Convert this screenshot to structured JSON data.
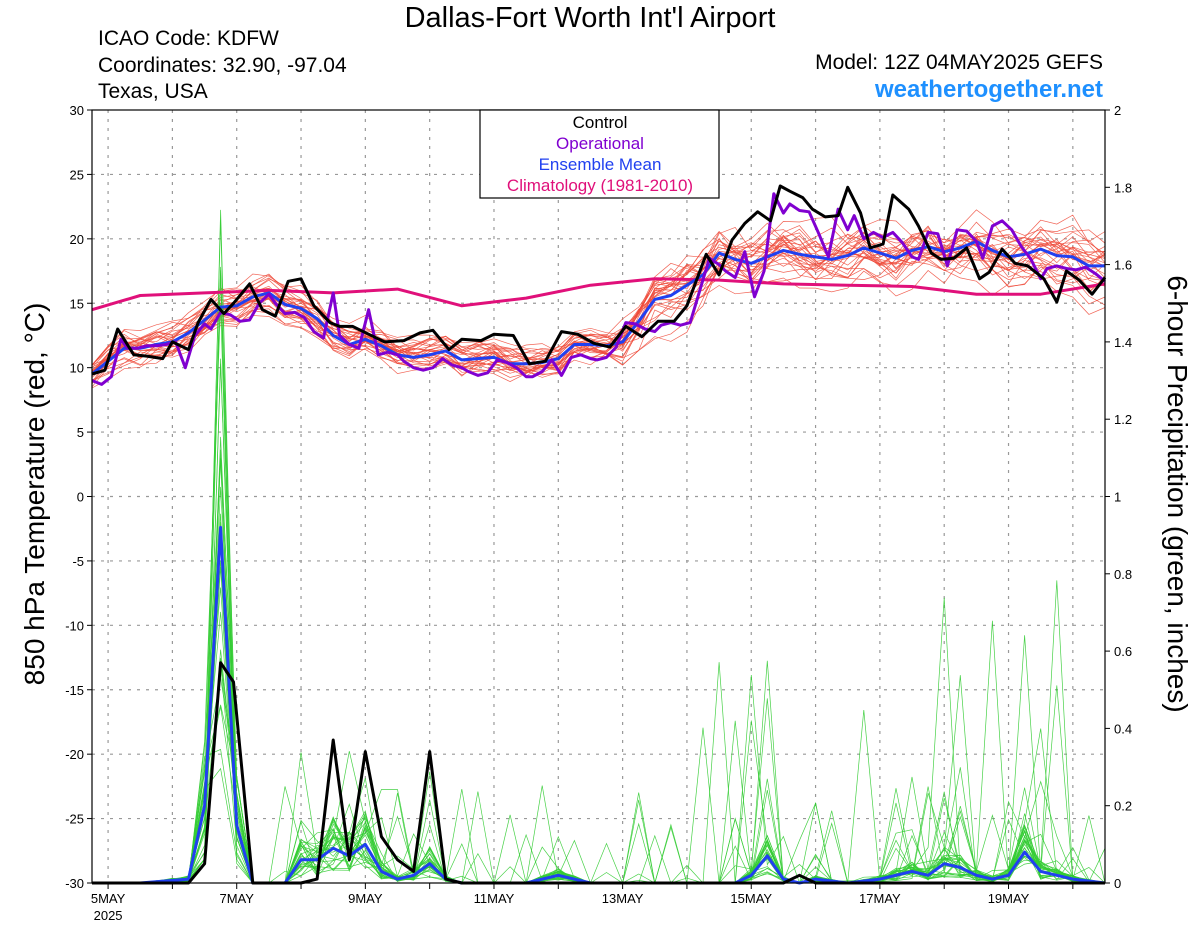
{
  "header": {
    "title": "Dallas-Fort Worth Int'l Airport",
    "icao": "ICAO Code: KDFW",
    "coordinates": "Coordinates: 32.90, -97.04",
    "region": "Texas, USA",
    "model": "Model: 12Z 04MAY2025 GEFS",
    "website": "weathertogether.net"
  },
  "colors": {
    "control": "#000000",
    "operational": "#8000d0",
    "ensemble_mean": "#2040f0",
    "climatology": "#e0107a",
    "members_temp": "#ee4a3a",
    "members_precip": "#33cc33",
    "grid": "#999999",
    "website": "#1e90ff"
  },
  "chart_data": {
    "type": "line",
    "title": "Dallas-Fort Worth Int'l Airport",
    "ylabel": "850 hPa Temperature (red, °C)",
    "y2label": "6-hour Precipitation (green, inches)",
    "ylim": [
      -30,
      30
    ],
    "y2lim": [
      0,
      2
    ],
    "xlim": [
      4.75,
      20.5
    ],
    "x_units": "day of May 2025 (UTC)",
    "y_ticks": [
      "30",
      "25",
      "20",
      "15",
      "10",
      "5",
      "0",
      "-5",
      "-10",
      "-15",
      "-20",
      "-25",
      "-30"
    ],
    "y2_ticks": [
      "2",
      "1.8",
      "1.6",
      "1.4",
      "1.2",
      "1",
      "0.8",
      "0.6",
      "0.4",
      "0.2",
      "0"
    ],
    "x_ticks": [
      {
        "label": "5MAY",
        "sub": "2025",
        "day": 5
      },
      {
        "label": "7MAY",
        "day": 7
      },
      {
        "label": "9MAY",
        "day": 9
      },
      {
        "label": "11MAY",
        "day": 11
      },
      {
        "label": "13MAY",
        "day": 13
      },
      {
        "label": "15MAY",
        "day": 15
      },
      {
        "label": "17MAY",
        "day": 17
      },
      {
        "label": "19MAY",
        "day": 19
      }
    ],
    "grid": true,
    "legend_placement": "top-center",
    "legend": [
      {
        "label": "Control",
        "key": "control"
      },
      {
        "label": "Operational",
        "key": "operational"
      },
      {
        "label": "Ensemble Mean",
        "key": "ensemble_mean"
      },
      {
        "label": "Climatology (1981-2010)",
        "key": "climatology"
      }
    ],
    "series": [
      {
        "key": "climatology",
        "axis": "temp",
        "width": 3,
        "x": [
          4.75,
          5.5,
          6.5,
          7.5,
          8.5,
          9.5,
          10.5,
          11.5,
          12.5,
          13.5,
          14.5,
          15.5,
          16.5,
          17.5,
          18.5,
          19.5,
          20.5
        ],
        "y": [
          14.5,
          15.6,
          15.8,
          16.0,
          15.8,
          16.1,
          14.8,
          15.4,
          16.4,
          16.9,
          16.8,
          16.5,
          16.4,
          16.3,
          15.7,
          15.7,
          16.5
        ]
      },
      {
        "key": "ensemble_mean",
        "axis": "temp",
        "width": 3,
        "x": [
          4.75,
          5.0,
          5.25,
          5.5,
          5.75,
          6.0,
          6.25,
          6.5,
          6.75,
          7.0,
          7.25,
          7.5,
          7.75,
          8.0,
          8.25,
          8.5,
          8.75,
          9.0,
          9.25,
          9.5,
          9.75,
          10.0,
          10.25,
          10.5,
          10.75,
          11.0,
          11.25,
          11.5,
          11.75,
          12.0,
          12.25,
          12.5,
          12.75,
          13.0,
          13.25,
          13.5,
          13.75,
          14.0,
          14.25,
          14.5,
          14.75,
          15.0,
          15.25,
          15.5,
          15.75,
          16.0,
          16.25,
          16.5,
          16.75,
          17.0,
          17.25,
          17.5,
          17.75,
          18.0,
          18.25,
          18.5,
          18.75,
          19.0,
          19.25,
          19.5,
          19.75,
          20.0,
          20.25,
          20.5
        ],
        "y": [
          9.5,
          10.5,
          11.5,
          11.5,
          11.8,
          12.0,
          12.7,
          13.7,
          14.7,
          14.8,
          15.5,
          15.8,
          14.9,
          14.6,
          13.8,
          12.5,
          11.8,
          12.2,
          11.7,
          11.0,
          10.8,
          11.0,
          11.3,
          10.6,
          10.7,
          10.8,
          10.3,
          10.3,
          10.4,
          10.7,
          11.8,
          11.8,
          11.7,
          12.0,
          13.6,
          15.3,
          15.6,
          16.4,
          17.2,
          18.9,
          18.4,
          18.1,
          18.6,
          19.1,
          18.8,
          18.6,
          18.4,
          18.7,
          19.3,
          18.9,
          18.5,
          19.1,
          19.4,
          19.0,
          19.3,
          19.8,
          19.1,
          18.6,
          18.8,
          19.2,
          18.7,
          18.6,
          17.9,
          17.9
        ]
      },
      {
        "key": "operational",
        "axis": "temp",
        "width": 3,
        "x": [
          4.75,
          4.9,
          5.05,
          5.2,
          5.3,
          5.45,
          5.6,
          5.75,
          5.9,
          6.05,
          6.2,
          6.35,
          6.5,
          6.6,
          6.75,
          6.9,
          7.05,
          7.2,
          7.35,
          7.5,
          7.6,
          7.75,
          7.9,
          8.05,
          8.2,
          8.35,
          8.5,
          8.6,
          8.75,
          8.9,
          9.05,
          9.2,
          9.35,
          9.5,
          9.6,
          9.75,
          9.9,
          10.05,
          10.2,
          10.35,
          10.5,
          10.6,
          10.75,
          10.9,
          11.05,
          11.2,
          11.35,
          11.5,
          11.6,
          11.75,
          11.9,
          12.05,
          12.2,
          12.35,
          12.5,
          12.6,
          12.75,
          12.9,
          13.05,
          13.2,
          13.35,
          13.5,
          13.6,
          13.75,
          13.9,
          14.05,
          14.2,
          14.35,
          14.5,
          14.6,
          14.75,
          14.9,
          15.05,
          15.2,
          15.35,
          15.5,
          15.6,
          15.75,
          15.9,
          16.05,
          16.2,
          16.35,
          16.5,
          16.6,
          16.75,
          16.9,
          17.05,
          17.2,
          17.35,
          17.5,
          17.6,
          17.75,
          17.9,
          18.05,
          18.2,
          18.35,
          18.5,
          18.6,
          18.75,
          18.9,
          19.05,
          19.2,
          19.35,
          19.5,
          19.6,
          19.75,
          19.9,
          20.05,
          20.2,
          20.35,
          20.5
        ],
        "y": [
          9.0,
          8.7,
          9.3,
          12.2,
          11.5,
          11.5,
          11.7,
          11.7,
          11.8,
          12.0,
          10.0,
          12.5,
          13.4,
          13.0,
          14.3,
          14.1,
          13.6,
          13.7,
          15.0,
          15.7,
          15.0,
          14.2,
          14.3,
          13.9,
          12.8,
          12.3,
          15.8,
          12.5,
          11.8,
          11.5,
          14.5,
          11.0,
          11.2,
          11.0,
          10.5,
          10.0,
          9.8,
          10.0,
          10.7,
          10.2,
          10.0,
          9.7,
          9.4,
          9.6,
          10.6,
          10.4,
          10.0,
          9.3,
          9.3,
          9.7,
          10.6,
          9.4,
          10.8,
          11.0,
          10.7,
          10.6,
          10.8,
          11.6,
          13.5,
          13.4,
          13.0,
          12.8,
          13.3,
          13.5,
          13.3,
          13.5,
          16.0,
          18.5,
          18.0,
          17.5,
          17.0,
          19.0,
          15.5,
          17.5,
          23.5,
          22.0,
          22.7,
          22.2,
          22.1,
          20.4,
          18.6,
          22.3,
          20.7,
          21.8,
          20.0,
          20.5,
          20.1,
          20.5,
          19.7,
          18.6,
          18.4,
          20.5,
          20.4,
          17.9,
          20.7,
          20.6,
          19.8,
          18.5,
          21.0,
          21.4,
          20.7,
          19.4,
          18.4,
          16.9,
          17.7,
          17.9,
          17.7,
          17.6,
          17.8,
          17.3,
          16.7
        ]
      },
      {
        "key": "control",
        "axis": "temp",
        "width": 3,
        "x": [
          4.75,
          4.95,
          5.15,
          5.4,
          5.6,
          5.85,
          6.0,
          6.25,
          6.4,
          6.6,
          6.8,
          6.95,
          7.2,
          7.4,
          7.6,
          7.8,
          8.0,
          8.2,
          8.45,
          8.6,
          8.8,
          9.05,
          9.3,
          9.6,
          9.85,
          10.05,
          10.3,
          10.5,
          10.8,
          11.0,
          11.3,
          11.55,
          11.8,
          12.05,
          12.3,
          12.55,
          12.8,
          13.05,
          13.3,
          13.55,
          13.8,
          14.0,
          14.3,
          14.5,
          14.7,
          14.9,
          15.1,
          15.3,
          15.45,
          15.6,
          15.8,
          15.95,
          16.15,
          16.35,
          16.5,
          16.7,
          16.85,
          17.05,
          17.2,
          17.45,
          17.6,
          17.8,
          17.95,
          18.15,
          18.35,
          18.55,
          18.7,
          18.9,
          19.1,
          19.3,
          19.55,
          19.75,
          19.9,
          20.1,
          20.3,
          20.5
        ],
        "y": [
          9.5,
          9.8,
          13.0,
          11.0,
          10.9,
          10.7,
          12.0,
          11.4,
          13.5,
          15.3,
          14.2,
          15.0,
          16.5,
          14.5,
          14.0,
          16.7,
          16.9,
          14.8,
          13.5,
          13.2,
          13.2,
          12.6,
          12.0,
          12.1,
          12.7,
          12.9,
          11.4,
          12.2,
          12.1,
          12.6,
          12.5,
          10.3,
          10.5,
          12.8,
          12.6,
          11.9,
          11.6,
          13.2,
          12.4,
          13.6,
          13.6,
          14.8,
          18.8,
          17.2,
          19.9,
          21.2,
          22.1,
          21.4,
          24.1,
          23.7,
          23.2,
          22.3,
          21.7,
          21.8,
          24.0,
          22.0,
          19.3,
          19.6,
          23.4,
          22.3,
          21.0,
          18.9,
          18.4,
          18.5,
          19.3,
          16.9,
          17.4,
          19.2,
          18.1,
          17.9,
          16.9,
          15.1,
          17.5,
          16.8,
          15.7,
          17.0
        ]
      },
      {
        "key": "ensemble_mean",
        "axis": "precip",
        "width": 3,
        "x": [
          4.75,
          5.5,
          6.25,
          6.5,
          6.75,
          7.0,
          7.25,
          7.75,
          8.0,
          8.25,
          8.5,
          8.75,
          9.0,
          9.25,
          9.5,
          9.75,
          10.0,
          10.25,
          10.5,
          11.5,
          12.0,
          12.5,
          13.0,
          14.0,
          14.75,
          15.0,
          15.25,
          15.5,
          15.75,
          16.0,
          16.5,
          17.0,
          17.5,
          17.75,
          18.0,
          18.25,
          18.5,
          18.75,
          19.0,
          19.25,
          19.5,
          19.75,
          20.0,
          20.5
        ],
        "y": [
          0,
          0,
          0.01,
          0.2,
          0.92,
          0.15,
          0,
          0,
          0.06,
          0.06,
          0.09,
          0.07,
          0.1,
          0.03,
          0.01,
          0.02,
          0.05,
          0.01,
          0,
          0,
          0.02,
          0,
          0,
          0,
          0,
          0.02,
          0.07,
          0.01,
          0,
          0.01,
          0,
          0.01,
          0.03,
          0.02,
          0.05,
          0.04,
          0.02,
          0.01,
          0.02,
          0.08,
          0.03,
          0.02,
          0.01,
          0
        ]
      },
      {
        "key": "control",
        "axis": "precip",
        "width": 3,
        "x": [
          4.75,
          6.25,
          6.5,
          6.75,
          6.95,
          7.25,
          7.75,
          8.0,
          8.25,
          8.5,
          8.75,
          9.0,
          9.25,
          9.5,
          9.75,
          10.0,
          10.25,
          10.5,
          15.5,
          15.75,
          16.0,
          20.5
        ],
        "y": [
          0,
          0,
          0.05,
          0.57,
          0.52,
          0,
          0,
          0,
          0.01,
          0.37,
          0.06,
          0.34,
          0.12,
          0.06,
          0.03,
          0.34,
          0.01,
          0,
          0,
          0.02,
          0,
          0
        ]
      }
    ]
  }
}
